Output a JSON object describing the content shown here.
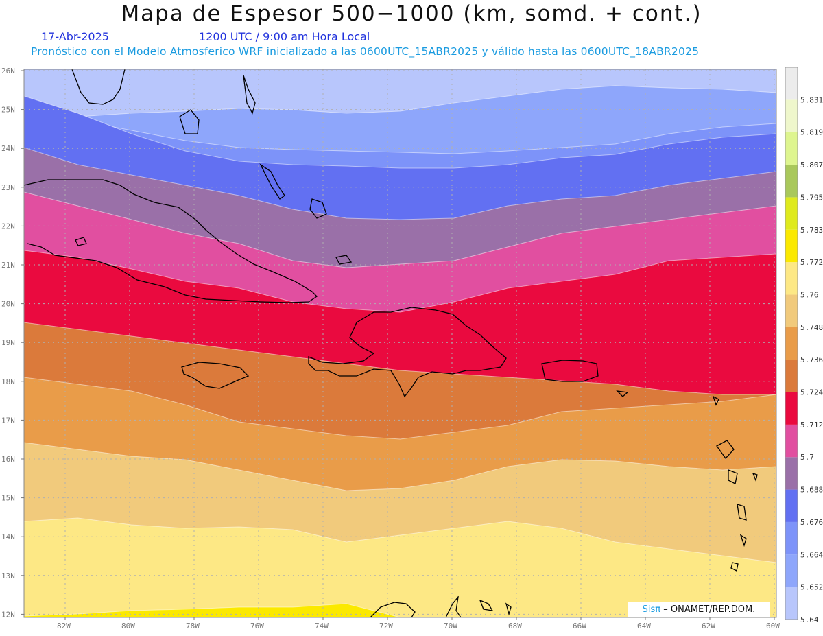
{
  "header": {
    "title": "Mapa de Espesor 500−1000 (km, somd. + cont.)",
    "date": "17-Abr-2025",
    "time": "1200 UTC / 9:00 am Hora Local",
    "info": "Pronóstico con el Modelo Atmosferico WRF inicializado a las 0600UTC_15ABR2025 y válido hasta las  0600UTC_18ABR2025"
  },
  "credit": {
    "logo": "Sisπ",
    "text": "– ONAMET/REP.DOM."
  },
  "axes": {
    "lat_labels": [
      "26N",
      "25N",
      "24N",
      "23N",
      "22N",
      "21N",
      "20N",
      "19N",
      "18N",
      "17N",
      "16N",
      "15N",
      "14N",
      "13N",
      "12N"
    ],
    "lon_labels": [
      "82W",
      "80W",
      "78W",
      "76W",
      "74W",
      "72W",
      "70W",
      "68W",
      "66W",
      "64W",
      "62W",
      "60W"
    ]
  },
  "colorbar": {
    "labels": [
      "5.831",
      "5.819",
      "5.807",
      "5.795",
      "5.783",
      "5.772",
      "5.76",
      "5.748",
      "5.736",
      "5.724",
      "5.712",
      "5.7",
      "5.688",
      "5.676",
      "5.664",
      "5.652",
      "5.64"
    ],
    "colors": [
      "#b8c6fc",
      "#8ea6fb",
      "#7d93f9",
      "#6270f2",
      "#9a70a8",
      "#e14fa0",
      "#ea0a3f",
      "#db7a3b",
      "#e99c49",
      "#f1ca7c",
      "#fde885",
      "#fbe900",
      "#dfea1d",
      "#a9c85b",
      "#def58f",
      "#eff7cc",
      "#ececec"
    ]
  },
  "legend_colors": {
    "frame": "#888888",
    "grid": "#b0b0b0",
    "coast": "#000000"
  }
}
